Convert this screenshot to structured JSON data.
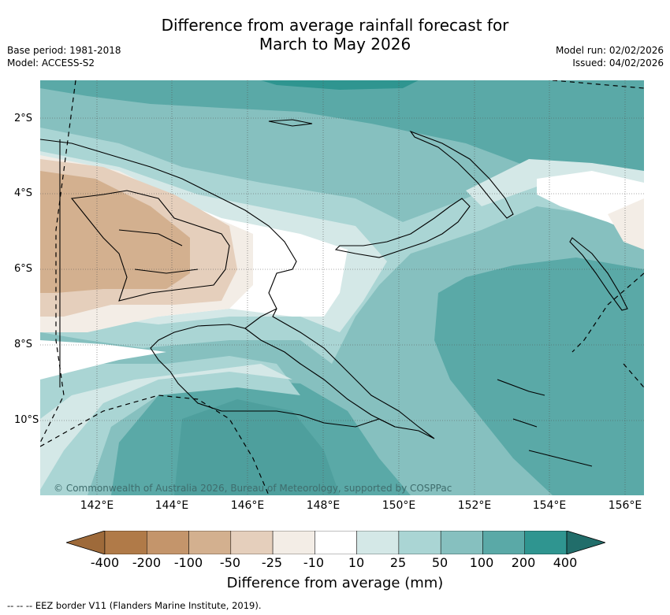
{
  "title_line1": "Difference from average rainfall forecast for",
  "title_line2": "March to May 2026",
  "meta": {
    "base_period": "Base period: 1981-2018",
    "model": "Model: ACCESS-S2",
    "model_run": "Model run: 02/02/2026",
    "issued": "Issued: 04/02/2026"
  },
  "map": {
    "credit": "© Commonwealth of Australia 2026, Bureau of Meteorology, supported by COSPPac",
    "x_ticks": [
      "142°E",
      "144°E",
      "146°E",
      "148°E",
      "150°E",
      "152°E",
      "154°E",
      "156°E"
    ],
    "y_ticks": [
      "2°S",
      "4°S",
      "6°S",
      "8°S",
      "10°S"
    ],
    "lon_range": [
      140.5,
      156.5
    ],
    "lat_range": [
      -12,
      -1
    ]
  },
  "colorbar": {
    "labels": [
      "-400",
      "-200",
      "-100",
      "-50",
      "-25",
      "-10",
      "10",
      "25",
      "50",
      "100",
      "200",
      "400"
    ],
    "colors": [
      "#9e6a3a",
      "#b07a48",
      "#c4956b",
      "#d3b08f",
      "#e5cfbc",
      "#f3ede6",
      "#ffffff",
      "#d4e8e7",
      "#aad5d4",
      "#86c0bf",
      "#5aa9a7",
      "#2f9590",
      "#216d6a"
    ],
    "title": "Difference from average (mm)"
  },
  "footnote": "--  --  -- EEZ border V11 (Flanders Marine Institute, 2019)."
}
